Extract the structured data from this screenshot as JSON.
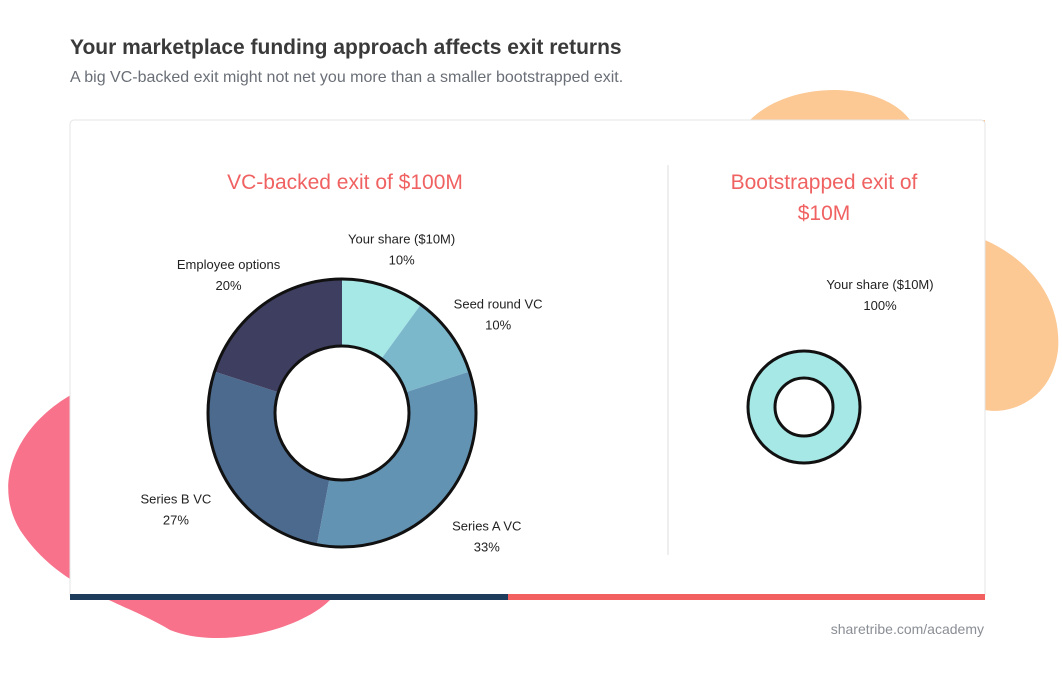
{
  "header": {
    "title": "Your marketplace funding approach affects exit returns",
    "subtitle": "A big VC-backed exit might not net you more than a smaller bootstrapped exit."
  },
  "footer": "sharetribe.com/academy",
  "chart_data": [
    {
      "type": "donut",
      "title": "VC-backed exit of $100M",
      "categories": [
        "Your share ($10M)",
        "Seed round VC",
        "Series A VC",
        "Series B VC",
        "Employee options"
      ],
      "values": [
        10,
        10,
        33,
        27,
        20
      ],
      "value_labels": [
        "10%",
        "10%",
        "33%",
        "27%",
        "20%"
      ],
      "colors": [
        "#a6e8e6",
        "#7cb8cc",
        "#6393b3",
        "#4b6a8e",
        "#3e3e60"
      ]
    },
    {
      "type": "donut",
      "title": "Bootstrapped exit of $10M",
      "categories": [
        "Your share ($10M)"
      ],
      "values": [
        100
      ],
      "value_labels": [
        "100%"
      ],
      "colors": [
        "#a6e8e6"
      ]
    }
  ]
}
